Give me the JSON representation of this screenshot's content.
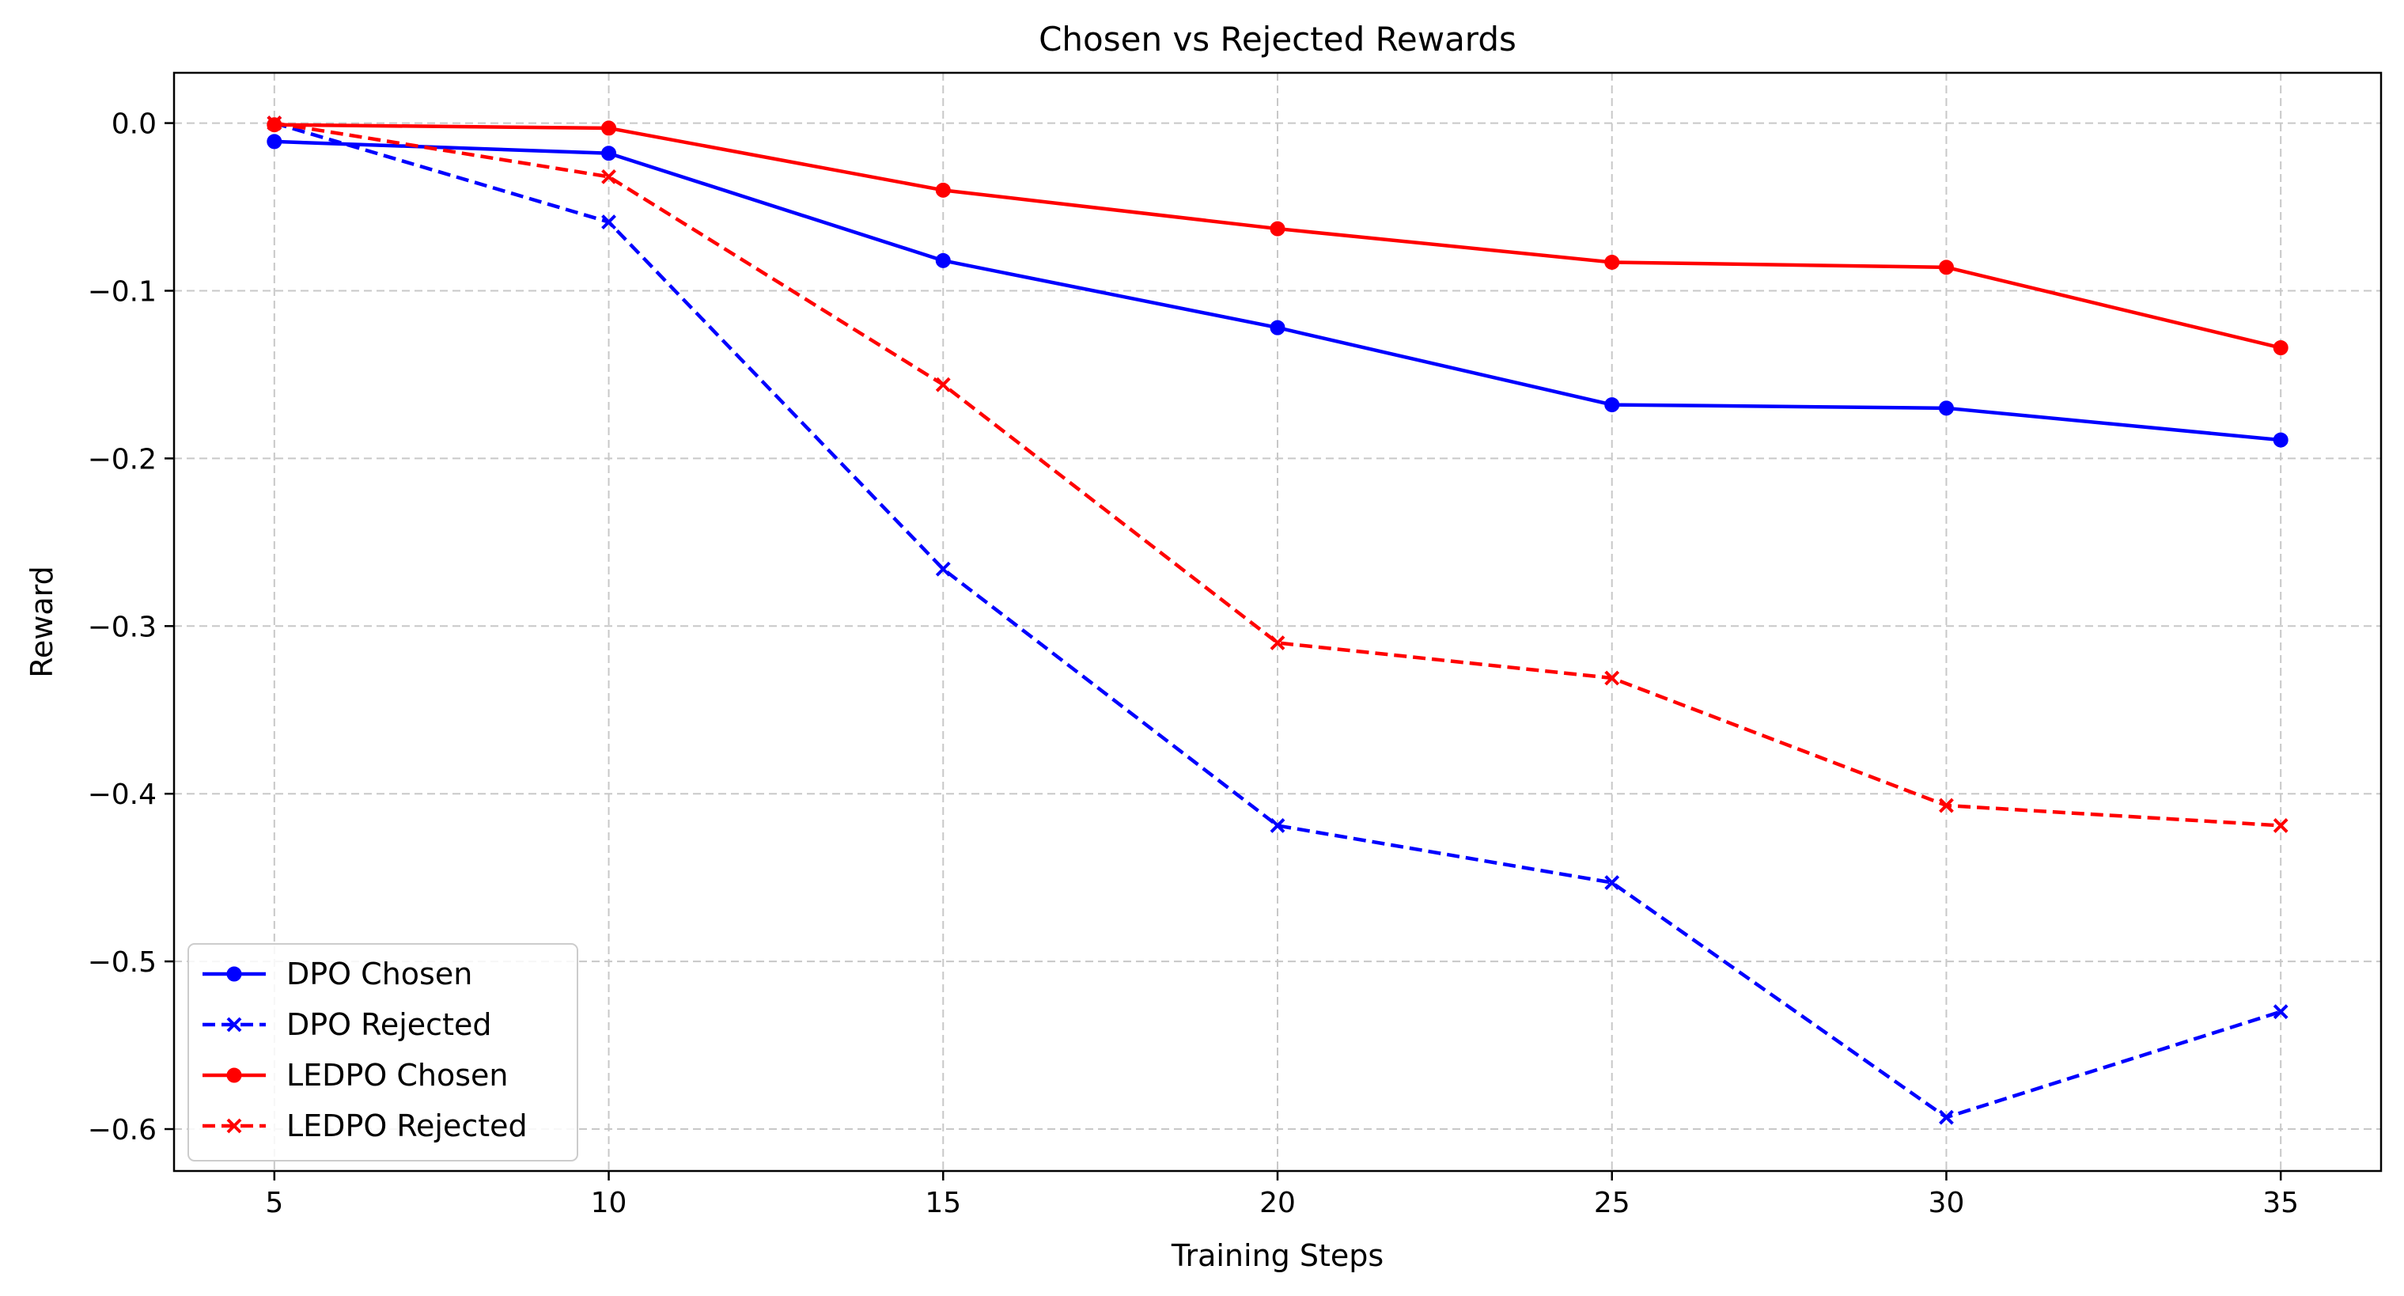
{
  "chart_data": {
    "type": "line",
    "title": "Chosen vs Rejected Rewards",
    "xlabel": "Training Steps",
    "ylabel": "Reward",
    "x": [
      5,
      10,
      15,
      20,
      25,
      30,
      35
    ],
    "xlim": [
      3.5,
      36.5
    ],
    "ylim": [
      -0.625,
      0.03
    ],
    "xticks": [
      5,
      10,
      15,
      20,
      25,
      30,
      35
    ],
    "yticks": [
      0.0,
      -0.1,
      -0.2,
      -0.3,
      -0.4,
      -0.5,
      -0.6
    ],
    "ytick_labels": [
      "0.0",
      "−0.1",
      "−0.2",
      "−0.3",
      "−0.4",
      "−0.5",
      "−0.6"
    ],
    "grid": true,
    "legend_position": "lower-left",
    "series": [
      {
        "name": "DPO Chosen",
        "color": "#0000ff",
        "style": "solid",
        "marker": "circle",
        "values": [
          -0.011,
          -0.018,
          -0.082,
          -0.122,
          -0.168,
          -0.17,
          -0.189
        ]
      },
      {
        "name": "DPO Rejected",
        "color": "#0000ff",
        "style": "dashed",
        "marker": "x",
        "values": [
          0.0,
          -0.059,
          -0.266,
          -0.419,
          -0.453,
          -0.593,
          -0.53
        ]
      },
      {
        "name": "LEDPO Chosen",
        "color": "#ff0000",
        "style": "solid",
        "marker": "circle",
        "values": [
          -0.001,
          -0.003,
          -0.04,
          -0.063,
          -0.083,
          -0.086,
          -0.134
        ]
      },
      {
        "name": "LEDPO Rejected",
        "color": "#ff0000",
        "style": "dashed",
        "marker": "x",
        "values": [
          0.0,
          -0.032,
          -0.156,
          -0.31,
          -0.331,
          -0.407,
          -0.419
        ]
      }
    ]
  }
}
